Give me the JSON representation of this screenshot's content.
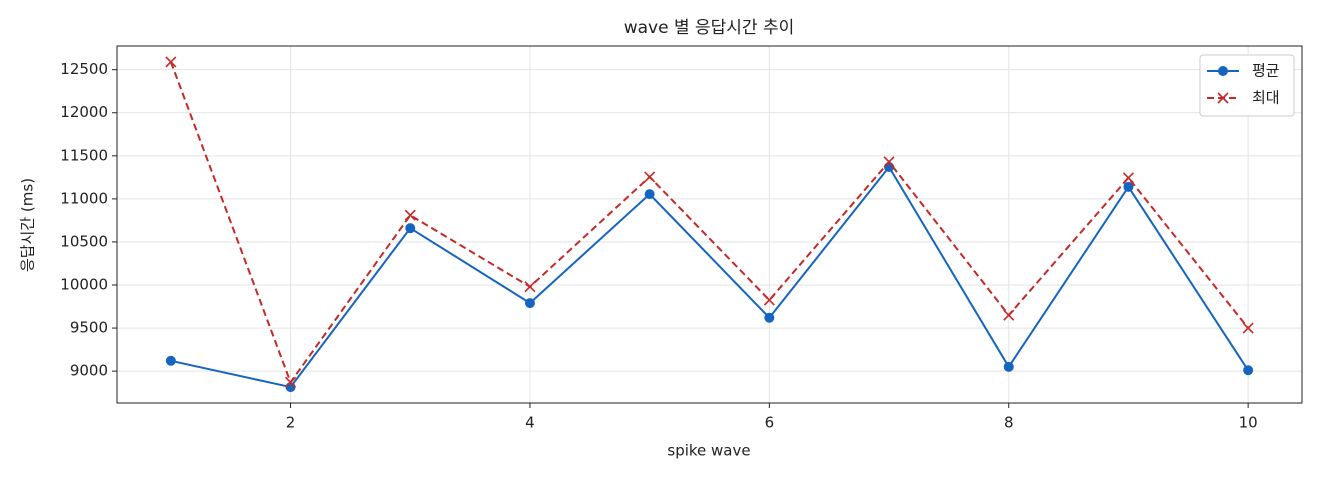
{
  "chart_data": {
    "type": "line",
    "title": "wave 별 응답시간 추이",
    "x_label": "spike wave",
    "y_label": "응답시간 (ms)",
    "x": [
      1,
      2,
      3,
      4,
      5,
      6,
      7,
      8,
      9,
      10
    ],
    "series": [
      {
        "name": "평균",
        "color": "#1565c0",
        "marker": "o",
        "linestyle": "solid",
        "values": [
          9120,
          8815,
          10660,
          9790,
          11055,
          9620,
          11370,
          9050,
          11140,
          9010
        ]
      },
      {
        "name": "최대",
        "color": "#c62828",
        "marker": "x",
        "linestyle": "dashed",
        "values": [
          12590,
          8870,
          10810,
          9980,
          11255,
          9825,
          11430,
          9650,
          11245,
          9500
        ]
      }
    ],
    "xlim": [
      0.55,
      10.45
    ],
    "xticks": [
      2,
      4,
      6,
      8,
      10
    ],
    "ylim": [
      8630,
      12775
    ],
    "yticks": [
      9000,
      9500,
      10000,
      10500,
      11000,
      11500,
      12000,
      12500
    ],
    "grid": true,
    "legend": "upper-right"
  }
}
